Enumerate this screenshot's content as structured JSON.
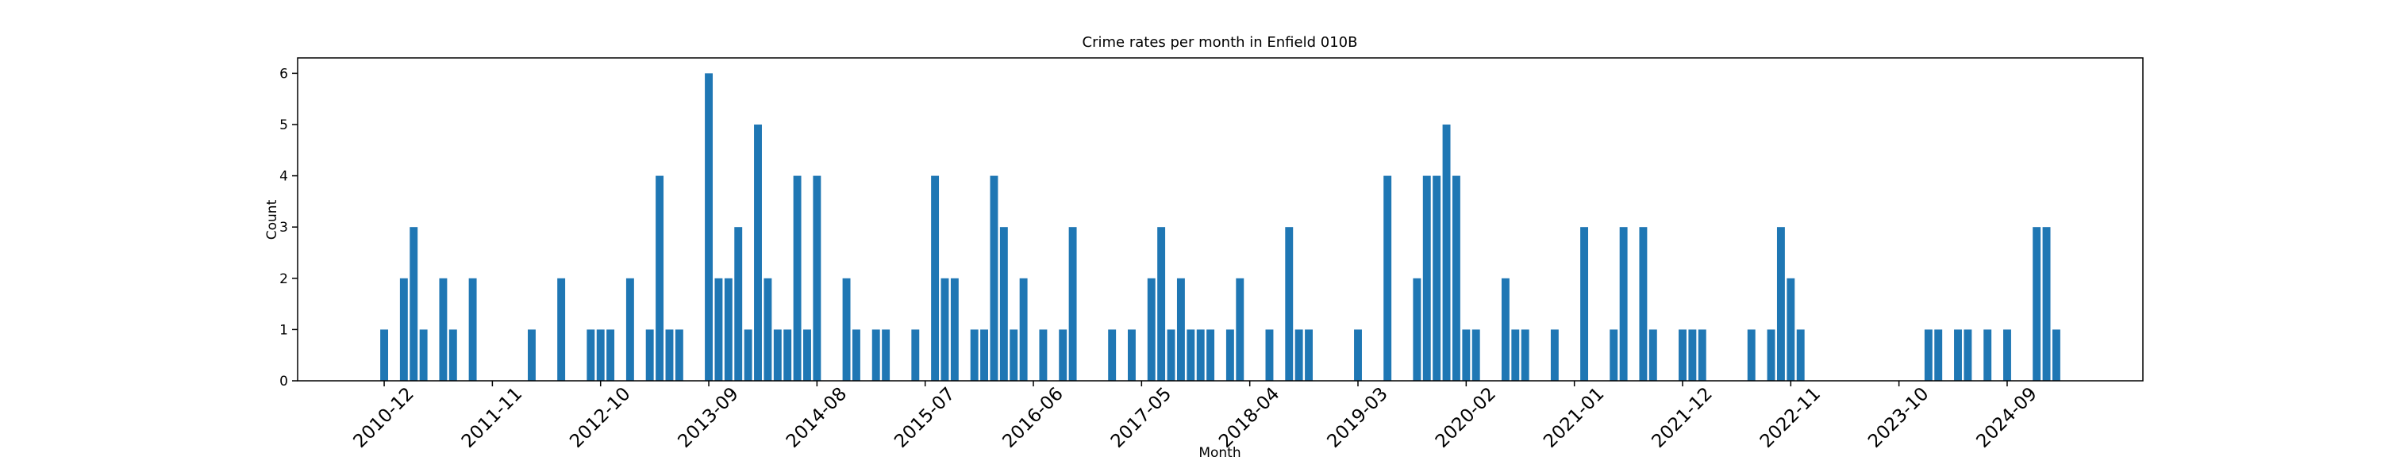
{
  "chart_data": {
    "type": "bar",
    "title": "Crime rates per month in Enfield 010B",
    "xlabel": "Month",
    "ylabel": "Count",
    "color": "#1f77b4",
    "categories": [
      "2010-12",
      null,
      null,
      null,
      null,
      null,
      null,
      null,
      null,
      null,
      null,
      "2011-11",
      null,
      null,
      null,
      null,
      null,
      null,
      null,
      null,
      null,
      null,
      "2012-10",
      null,
      null,
      null,
      null,
      null,
      null,
      null,
      null,
      null,
      null,
      "2013-09",
      null,
      null,
      null,
      null,
      null,
      null,
      null,
      null,
      null,
      null,
      "2014-08",
      null,
      null,
      null,
      null,
      null,
      null,
      null,
      null,
      null,
      null,
      "2015-07",
      null,
      null,
      null,
      null,
      null,
      null,
      null,
      null,
      null,
      null,
      "2016-06",
      null,
      null,
      null,
      null,
      null,
      null,
      null,
      null,
      null,
      null,
      "2017-05",
      null,
      null,
      null,
      null,
      null,
      null,
      null,
      null,
      null,
      null,
      "2018-04",
      null,
      null,
      null,
      null,
      null,
      null,
      null,
      null,
      null,
      null,
      "2019-03",
      null,
      null,
      null,
      null,
      null,
      null,
      null,
      null,
      null,
      null,
      "2020-02",
      null,
      null,
      null,
      null,
      null,
      null,
      null,
      null,
      null,
      null,
      "2021-01",
      null,
      null,
      null,
      null,
      null,
      null,
      null,
      null,
      null,
      null,
      "2021-12",
      null,
      null,
      null,
      null,
      null,
      null,
      null,
      null,
      null,
      null,
      "2022-11",
      null,
      null,
      null,
      null,
      null,
      null,
      null,
      null,
      null,
      null,
      "2023-10",
      null,
      null,
      null,
      null,
      null,
      null,
      null,
      null,
      null,
      null,
      "2024-09",
      null,
      null,
      null,
      null,
      null
    ],
    "values": [
      1,
      0,
      2,
      3,
      1,
      0,
      2,
      1,
      0,
      2,
      0,
      0,
      0,
      0,
      0,
      1,
      0,
      0,
      2,
      0,
      0,
      1,
      1,
      1,
      0,
      2,
      0,
      1,
      4,
      1,
      1,
      0,
      0,
      6,
      2,
      2,
      3,
      1,
      5,
      2,
      1,
      1,
      4,
      1,
      4,
      0,
      0,
      2,
      1,
      0,
      1,
      1,
      0,
      0,
      1,
      0,
      4,
      2,
      2,
      0,
      1,
      1,
      4,
      3,
      1,
      2,
      0,
      1,
      0,
      1,
      3,
      0,
      0,
      0,
      1,
      0,
      1,
      0,
      2,
      3,
      1,
      2,
      1,
      1,
      1,
      0,
      1,
      2,
      0,
      0,
      1,
      0,
      3,
      1,
      1,
      0,
      0,
      0,
      0,
      1,
      0,
      0,
      4,
      0,
      0,
      2,
      4,
      4,
      5,
      4,
      1,
      1,
      0,
      0,
      2,
      1,
      1,
      0,
      0,
      1,
      0,
      0,
      3,
      0,
      0,
      1,
      3,
      0,
      3,
      1,
      0,
      0,
      1,
      1,
      1,
      0,
      0,
      0,
      0,
      1,
      0,
      1,
      3,
      2,
      1,
      0,
      0,
      0,
      0,
      0,
      0,
      0,
      0,
      0,
      0,
      0,
      0,
      1,
      1,
      0,
      1,
      1,
      0,
      1,
      0,
      1,
      0,
      0,
      3,
      3,
      1
    ],
    "ylim": [
      0,
      6.3
    ],
    "yticks": [
      0,
      1,
      2,
      3,
      4,
      5,
      6
    ]
  }
}
